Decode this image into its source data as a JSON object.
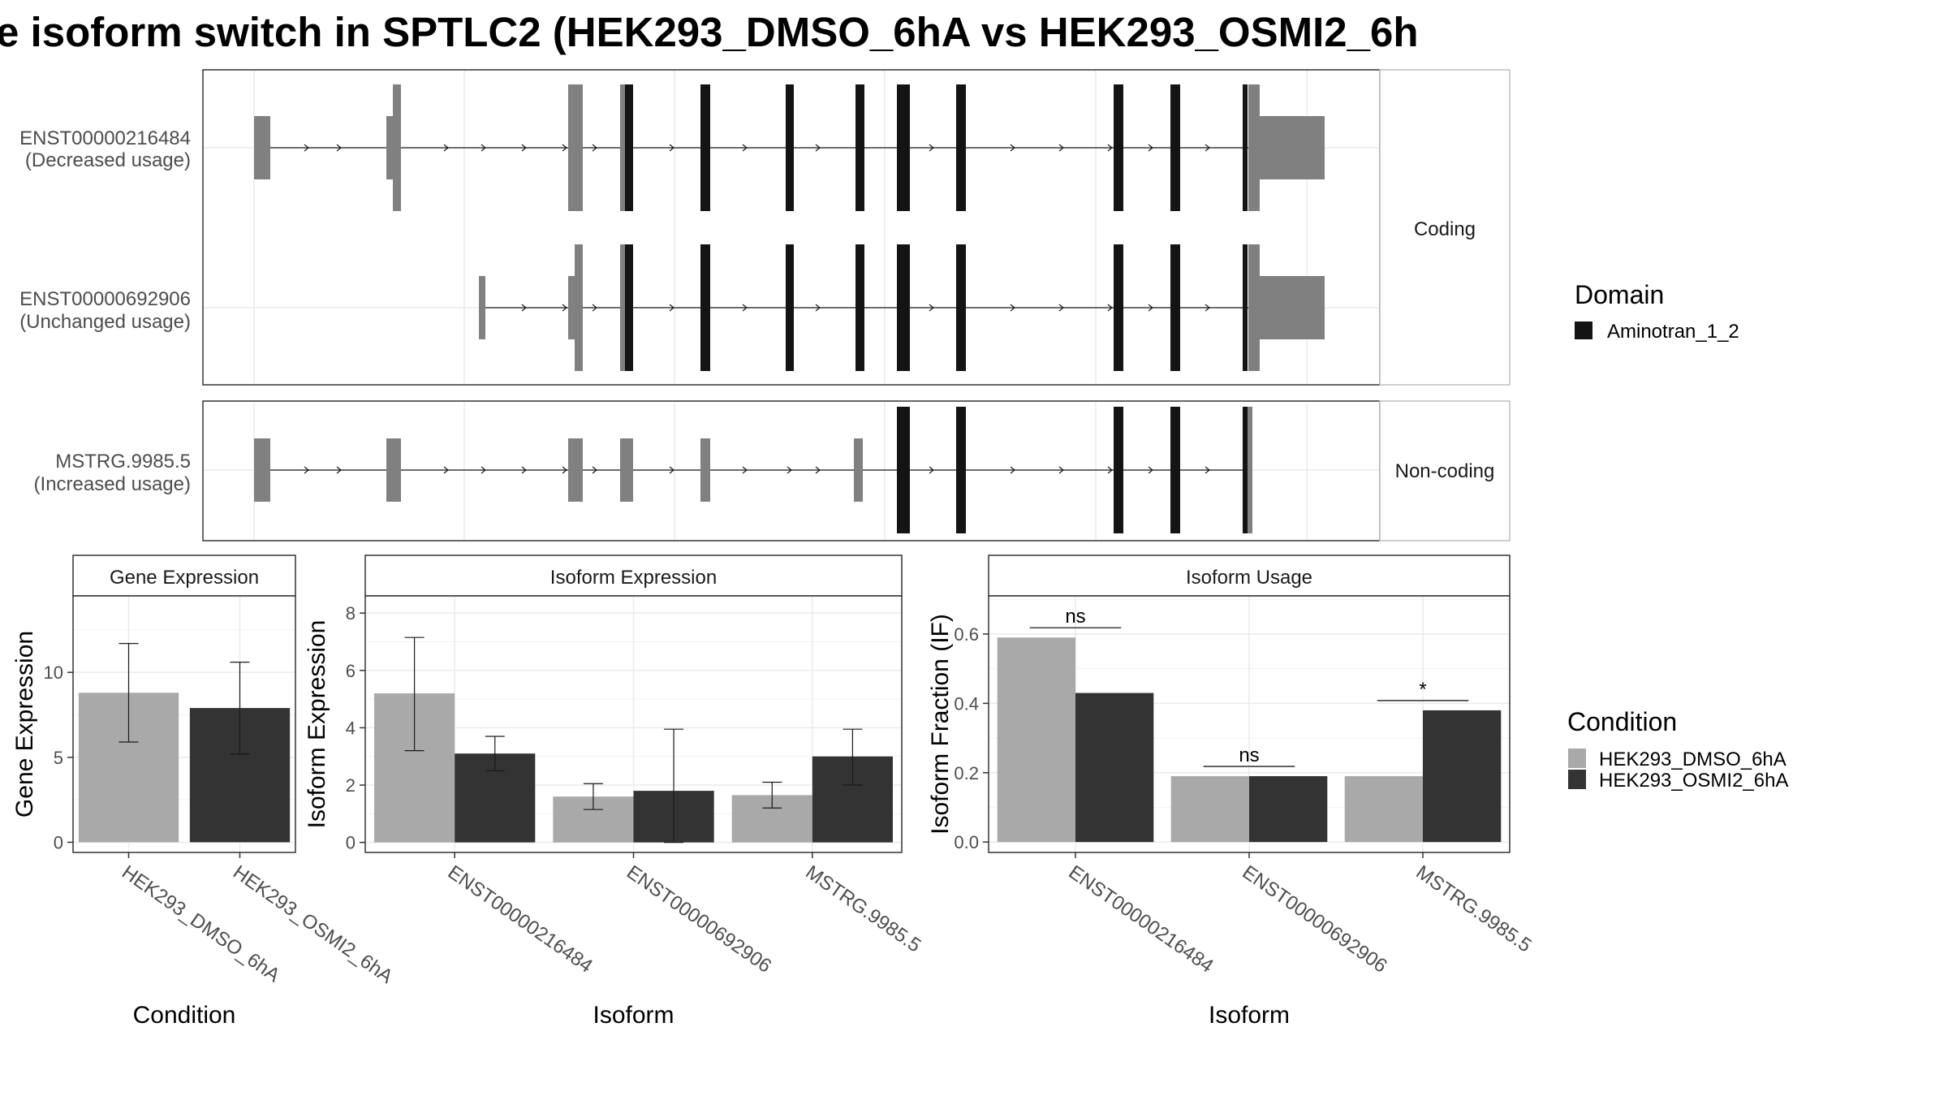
{
  "title": "e isoform switch in SPTLC2 (HEK293_DMSO_6hA vs HEK293_OSMI2_6h",
  "colors": {
    "dmso": "#a9a9a9",
    "osmi2": "#333333",
    "utr": "#808080",
    "domain": "#141414",
    "grid": "#ebebeb"
  },
  "structure": {
    "groups": [
      {
        "label": "Coding",
        "transcripts": [
          {
            "id": "ENST00000216484",
            "usage": "(Decreased usage)"
          },
          {
            "id": "ENST00000692906",
            "usage": "(Unchanged usage)"
          }
        ]
      },
      {
        "label": "Non-coding",
        "transcripts": [
          {
            "id": "MSTRG.9985.5",
            "usage": "(Increased usage)"
          }
        ]
      }
    ]
  },
  "legends": {
    "domain": {
      "title": "Domain",
      "items": [
        "Aminotran_1_2"
      ]
    },
    "condition": {
      "title": "Condition",
      "items": [
        "HEK293_DMSO_6hA",
        "HEK293_OSMI2_6hA"
      ]
    }
  },
  "chart_data": [
    {
      "type": "bar",
      "title": "Gene Expression",
      "xlabel": "Condition",
      "ylabel": "Gene Expression",
      "categories": [
        "HEK293_DMSO_6hA",
        "HEK293_OSMI2_6hA"
      ],
      "values": [
        8.8,
        7.9
      ],
      "errors": [
        [
          5.9,
          11.7
        ],
        [
          5.2,
          10.6
        ]
      ],
      "ylim": [
        -0.6,
        14.5
      ],
      "yticks": [
        0,
        5,
        10
      ]
    },
    {
      "type": "bar",
      "title": "Isoform Expression",
      "xlabel": "Isoform",
      "ylabel": "Isoform Expression",
      "categories": [
        "ENST00000216484",
        "ENST00000692906",
        "MSTRG.9985.5"
      ],
      "series": [
        {
          "name": "HEK293_DMSO_6hA",
          "values": [
            5.2,
            1.6,
            1.65
          ],
          "errors": [
            [
              3.2,
              7.15
            ],
            [
              1.15,
              2.05
            ],
            [
              1.2,
              2.1
            ]
          ]
        },
        {
          "name": "HEK293_OSMI2_6hA",
          "values": [
            3.1,
            1.8,
            3.0
          ],
          "errors": [
            [
              2.5,
              3.7
            ],
            [
              0.0,
              3.95
            ],
            [
              2.0,
              3.95
            ]
          ]
        }
      ],
      "ylim": [
        -0.35,
        8.6
      ],
      "yticks": [
        0,
        2,
        4,
        6,
        8
      ]
    },
    {
      "type": "bar",
      "title": "Isoform Usage",
      "xlabel": "Isoform",
      "ylabel": "Isoform Fraction (IF)",
      "categories": [
        "ENST00000216484",
        "ENST00000692906",
        "MSTRG.9985.5"
      ],
      "series": [
        {
          "name": "HEK293_DMSO_6hA",
          "values": [
            0.59,
            0.19,
            0.19
          ]
        },
        {
          "name": "HEK293_OSMI2_6hA",
          "values": [
            0.43,
            0.19,
            0.38
          ]
        }
      ],
      "significance": [
        "ns",
        "ns",
        "*"
      ],
      "ylim": [
        -0.03,
        0.71
      ],
      "yticks": [
        0.0,
        0.2,
        0.4,
        0.6
      ]
    }
  ]
}
